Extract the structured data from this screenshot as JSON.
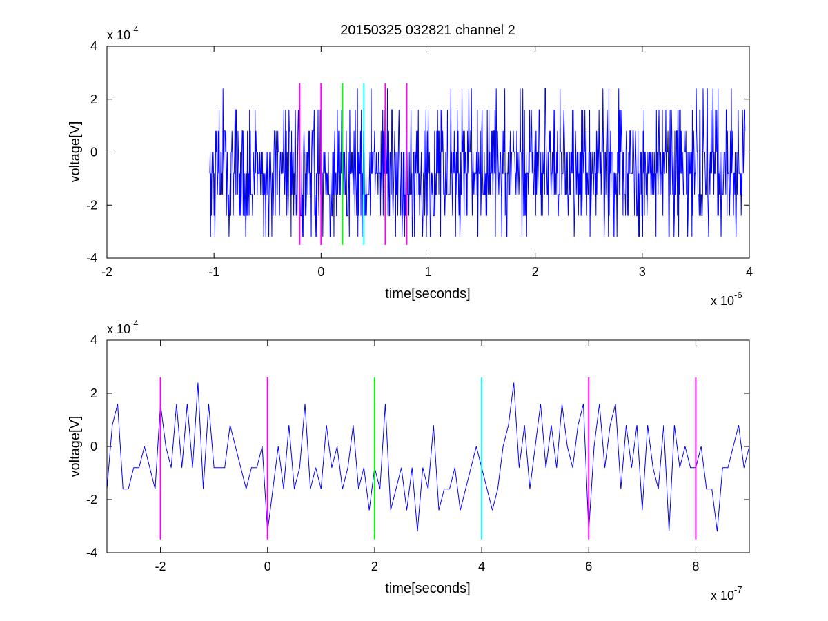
{
  "chart_data": [
    {
      "type": "line",
      "title": "20150325 032821 channel 2",
      "xlabel": "time[seconds]",
      "ylabel": "voltage[V]",
      "x_exponent_label": "x 10",
      "x_exponent": "-6",
      "y_exponent_label": "x 10",
      "y_exponent": "-4",
      "xlim": [
        -2,
        4
      ],
      "ylim": [
        -4,
        4
      ],
      "x_ticks": [
        "-2",
        "-1",
        "0",
        "1",
        "2",
        "3",
        "4"
      ],
      "y_ticks": [
        "4",
        "2",
        "0",
        "-2",
        "-4"
      ],
      "x_tick_values": [
        -2,
        -1,
        0,
        1,
        2,
        3,
        4
      ],
      "y_tick_values": [
        4,
        2,
        0,
        -2,
        -4
      ],
      "grid": false,
      "series": [
        {
          "color": "#0000ff",
          "sample_step": 0.004,
          "x_start": -1.04,
          "x_end": 3.96,
          "quant_levels": [
            -3.2,
            -2.4,
            -1.6,
            -0.8,
            0,
            0.8,
            1.6,
            2.4
          ],
          "approx_range": [
            -3.2,
            2.4
          ]
        }
      ],
      "markers": [
        {
          "x": -0.2,
          "color": "#ff00ff"
        },
        {
          "x": 0.0,
          "color": "#ff00ff"
        },
        {
          "x": 0.2,
          "color": "#00ff00"
        },
        {
          "x": 0.4,
          "color": "#00ffff"
        },
        {
          "x": 0.6,
          "color": "#ff00ff"
        },
        {
          "x": 0.8,
          "color": "#ff00ff"
        }
      ],
      "marker_y_range": [
        -3.5,
        2.6
      ]
    },
    {
      "type": "line",
      "title": "",
      "xlabel": "time[seconds]",
      "ylabel": "voltage[V]",
      "x_exponent_label": "x 10",
      "x_exponent": "-7",
      "y_exponent_label": "x 10",
      "y_exponent": "-4",
      "xlim": [
        -3,
        9
      ],
      "ylim": [
        -4,
        4
      ],
      "x_ticks": [
        "-2",
        "0",
        "2",
        "4",
        "6",
        "8"
      ],
      "y_ticks": [
        "4",
        "2",
        "0",
        "-2",
        "-4"
      ],
      "x_tick_values": [
        -2,
        0,
        2,
        4,
        6,
        8
      ],
      "y_tick_values": [
        4,
        2,
        0,
        -2,
        -4
      ],
      "grid": false,
      "series": [
        {
          "color": "#0000ff",
          "x": [
            -3.0,
            -2.9,
            -2.8,
            -2.7,
            -2.6,
            -2.5,
            -2.4,
            -2.3,
            -2.2,
            -2.1,
            -2.0,
            -1.9,
            -1.8,
            -1.7,
            -1.6,
            -1.5,
            -1.4,
            -1.3,
            -1.2,
            -1.1,
            -1.0,
            -0.9,
            -0.8,
            -0.7,
            -0.6,
            -0.5,
            -0.4,
            -0.3,
            -0.2,
            -0.1,
            0.0,
            0.1,
            0.2,
            0.3,
            0.4,
            0.5,
            0.6,
            0.7,
            0.8,
            0.9,
            1.0,
            1.1,
            1.2,
            1.3,
            1.4,
            1.5,
            1.6,
            1.7,
            1.8,
            1.9,
            2.0,
            2.1,
            2.2,
            2.3,
            2.4,
            2.5,
            2.6,
            2.7,
            2.8,
            2.9,
            3.0,
            3.1,
            3.2,
            3.3,
            3.4,
            3.5,
            3.6,
            3.7,
            3.8,
            3.9,
            4.0,
            4.1,
            4.2,
            4.3,
            4.4,
            4.5,
            4.6,
            4.7,
            4.8,
            4.9,
            5.0,
            5.1,
            5.2,
            5.3,
            5.4,
            5.5,
            5.6,
            5.7,
            5.8,
            5.9,
            6.0,
            6.1,
            6.2,
            6.3,
            6.4,
            6.5,
            6.6,
            6.7,
            6.8,
            6.9,
            7.0,
            7.1,
            7.2,
            7.3,
            7.4,
            7.5,
            7.6,
            7.7,
            7.8,
            7.9,
            8.0,
            8.1,
            8.2,
            8.3,
            8.4,
            8.5,
            8.6,
            8.7,
            8.8,
            8.9,
            9.0
          ],
          "values": [
            -1.6,
            0.8,
            1.6,
            -1.6,
            -1.6,
            -0.8,
            -0.8,
            0,
            -0.8,
            -1.6,
            1.6,
            0,
            -0.8,
            1.6,
            -0.8,
            1.6,
            -0.8,
            2.4,
            -1.6,
            1.6,
            -0.8,
            -0.8,
            -0.8,
            0.8,
            0,
            -0.8,
            -1.6,
            -0.8,
            -0.8,
            0,
            -3.2,
            -1.6,
            0,
            -1.6,
            0.8,
            -1.6,
            -0.8,
            1.6,
            -1.6,
            -0.8,
            -1.6,
            0.8,
            -0.8,
            0,
            -1.6,
            -0.8,
            0.8,
            -1.6,
            -0.8,
            -2.4,
            -0.8,
            -1.6,
            1.6,
            -2.4,
            -1.6,
            -0.8,
            -2.4,
            -0.8,
            -3.2,
            -0.8,
            -1.6,
            0.8,
            -2.4,
            -1.6,
            -1.6,
            -0.8,
            -2.4,
            -1.6,
            -0.8,
            0,
            -0.8,
            -1.6,
            -2.4,
            -1.6,
            0,
            0.8,
            2.4,
            -0.8,
            0.8,
            -1.6,
            0,
            1.6,
            -0.8,
            0.8,
            -0.8,
            1.6,
            0,
            -0.8,
            0.8,
            1.6,
            -3.2,
            0,
            1.6,
            -0.8,
            0.8,
            1.6,
            -1.6,
            0.8,
            -0.8,
            0.8,
            -2.4,
            0.8,
            -0.8,
            -1.6,
            0.8,
            -3.2,
            0.8,
            -0.8,
            0,
            -0.8,
            -0.8,
            0,
            -1.6,
            -1.6,
            -3.2,
            -0.8,
            -0.8,
            0,
            0.8,
            -0.8,
            0
          ]
        }
      ],
      "markers": [
        {
          "x": -2,
          "color": "#ff00ff"
        },
        {
          "x": 0,
          "color": "#ff00ff"
        },
        {
          "x": 2,
          "color": "#00ff00"
        },
        {
          "x": 4,
          "color": "#00ffff"
        },
        {
          "x": 6,
          "color": "#ff00ff"
        },
        {
          "x": 8,
          "color": "#ff00ff"
        }
      ],
      "marker_y_range": [
        -3.5,
        2.6
      ]
    }
  ]
}
